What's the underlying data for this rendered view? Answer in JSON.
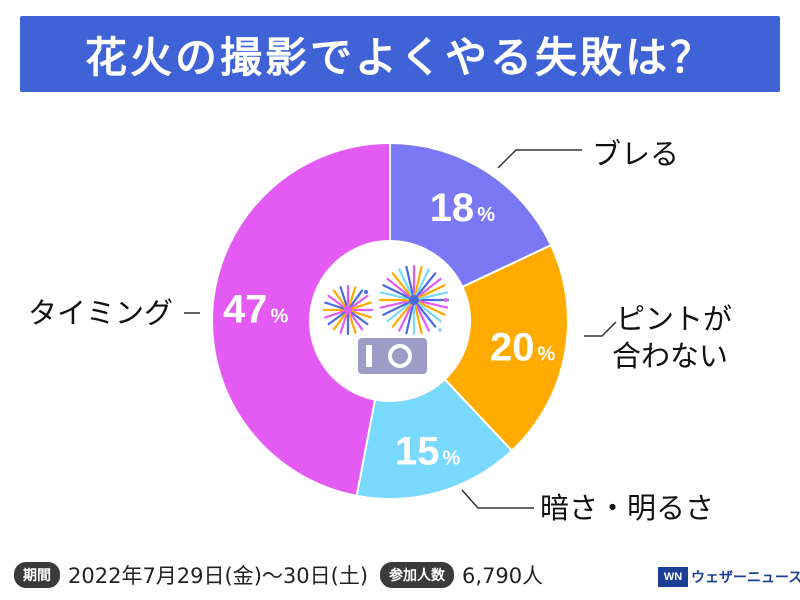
{
  "title": "花火の撮影でよくやる失敗は？",
  "chart_data": {
    "type": "pie",
    "title": "花火の撮影でよくやる失敗は？",
    "slices": [
      {
        "label": "ブレる",
        "value": 18,
        "color": "#7b78f6"
      },
      {
        "label": "ピントが合わない",
        "value": 20,
        "color": "#ffab00"
      },
      {
        "label": "暗さ・明るさ",
        "value": 15,
        "color": "#7ad9ff"
      },
      {
        "label": "タイミング",
        "value": 47,
        "color": "#e35bf2"
      }
    ],
    "unit": "%"
  },
  "callouts": {
    "bureru": "ブレる",
    "pinto_line1": "ピントが",
    "pinto_line2": "合わない",
    "kurasa": "暗さ・明るさ",
    "timing": "タイミング"
  },
  "footer": {
    "period_label": "期間",
    "period_value": "2022年7月29日(金)〜30日(土)",
    "participants_label": "参加人数",
    "participants_value": "6,790人"
  },
  "brand": {
    "logo": "WN",
    "name": "ウェザーニュース"
  },
  "icons": [
    "fireworks-icon",
    "camera-icon"
  ]
}
